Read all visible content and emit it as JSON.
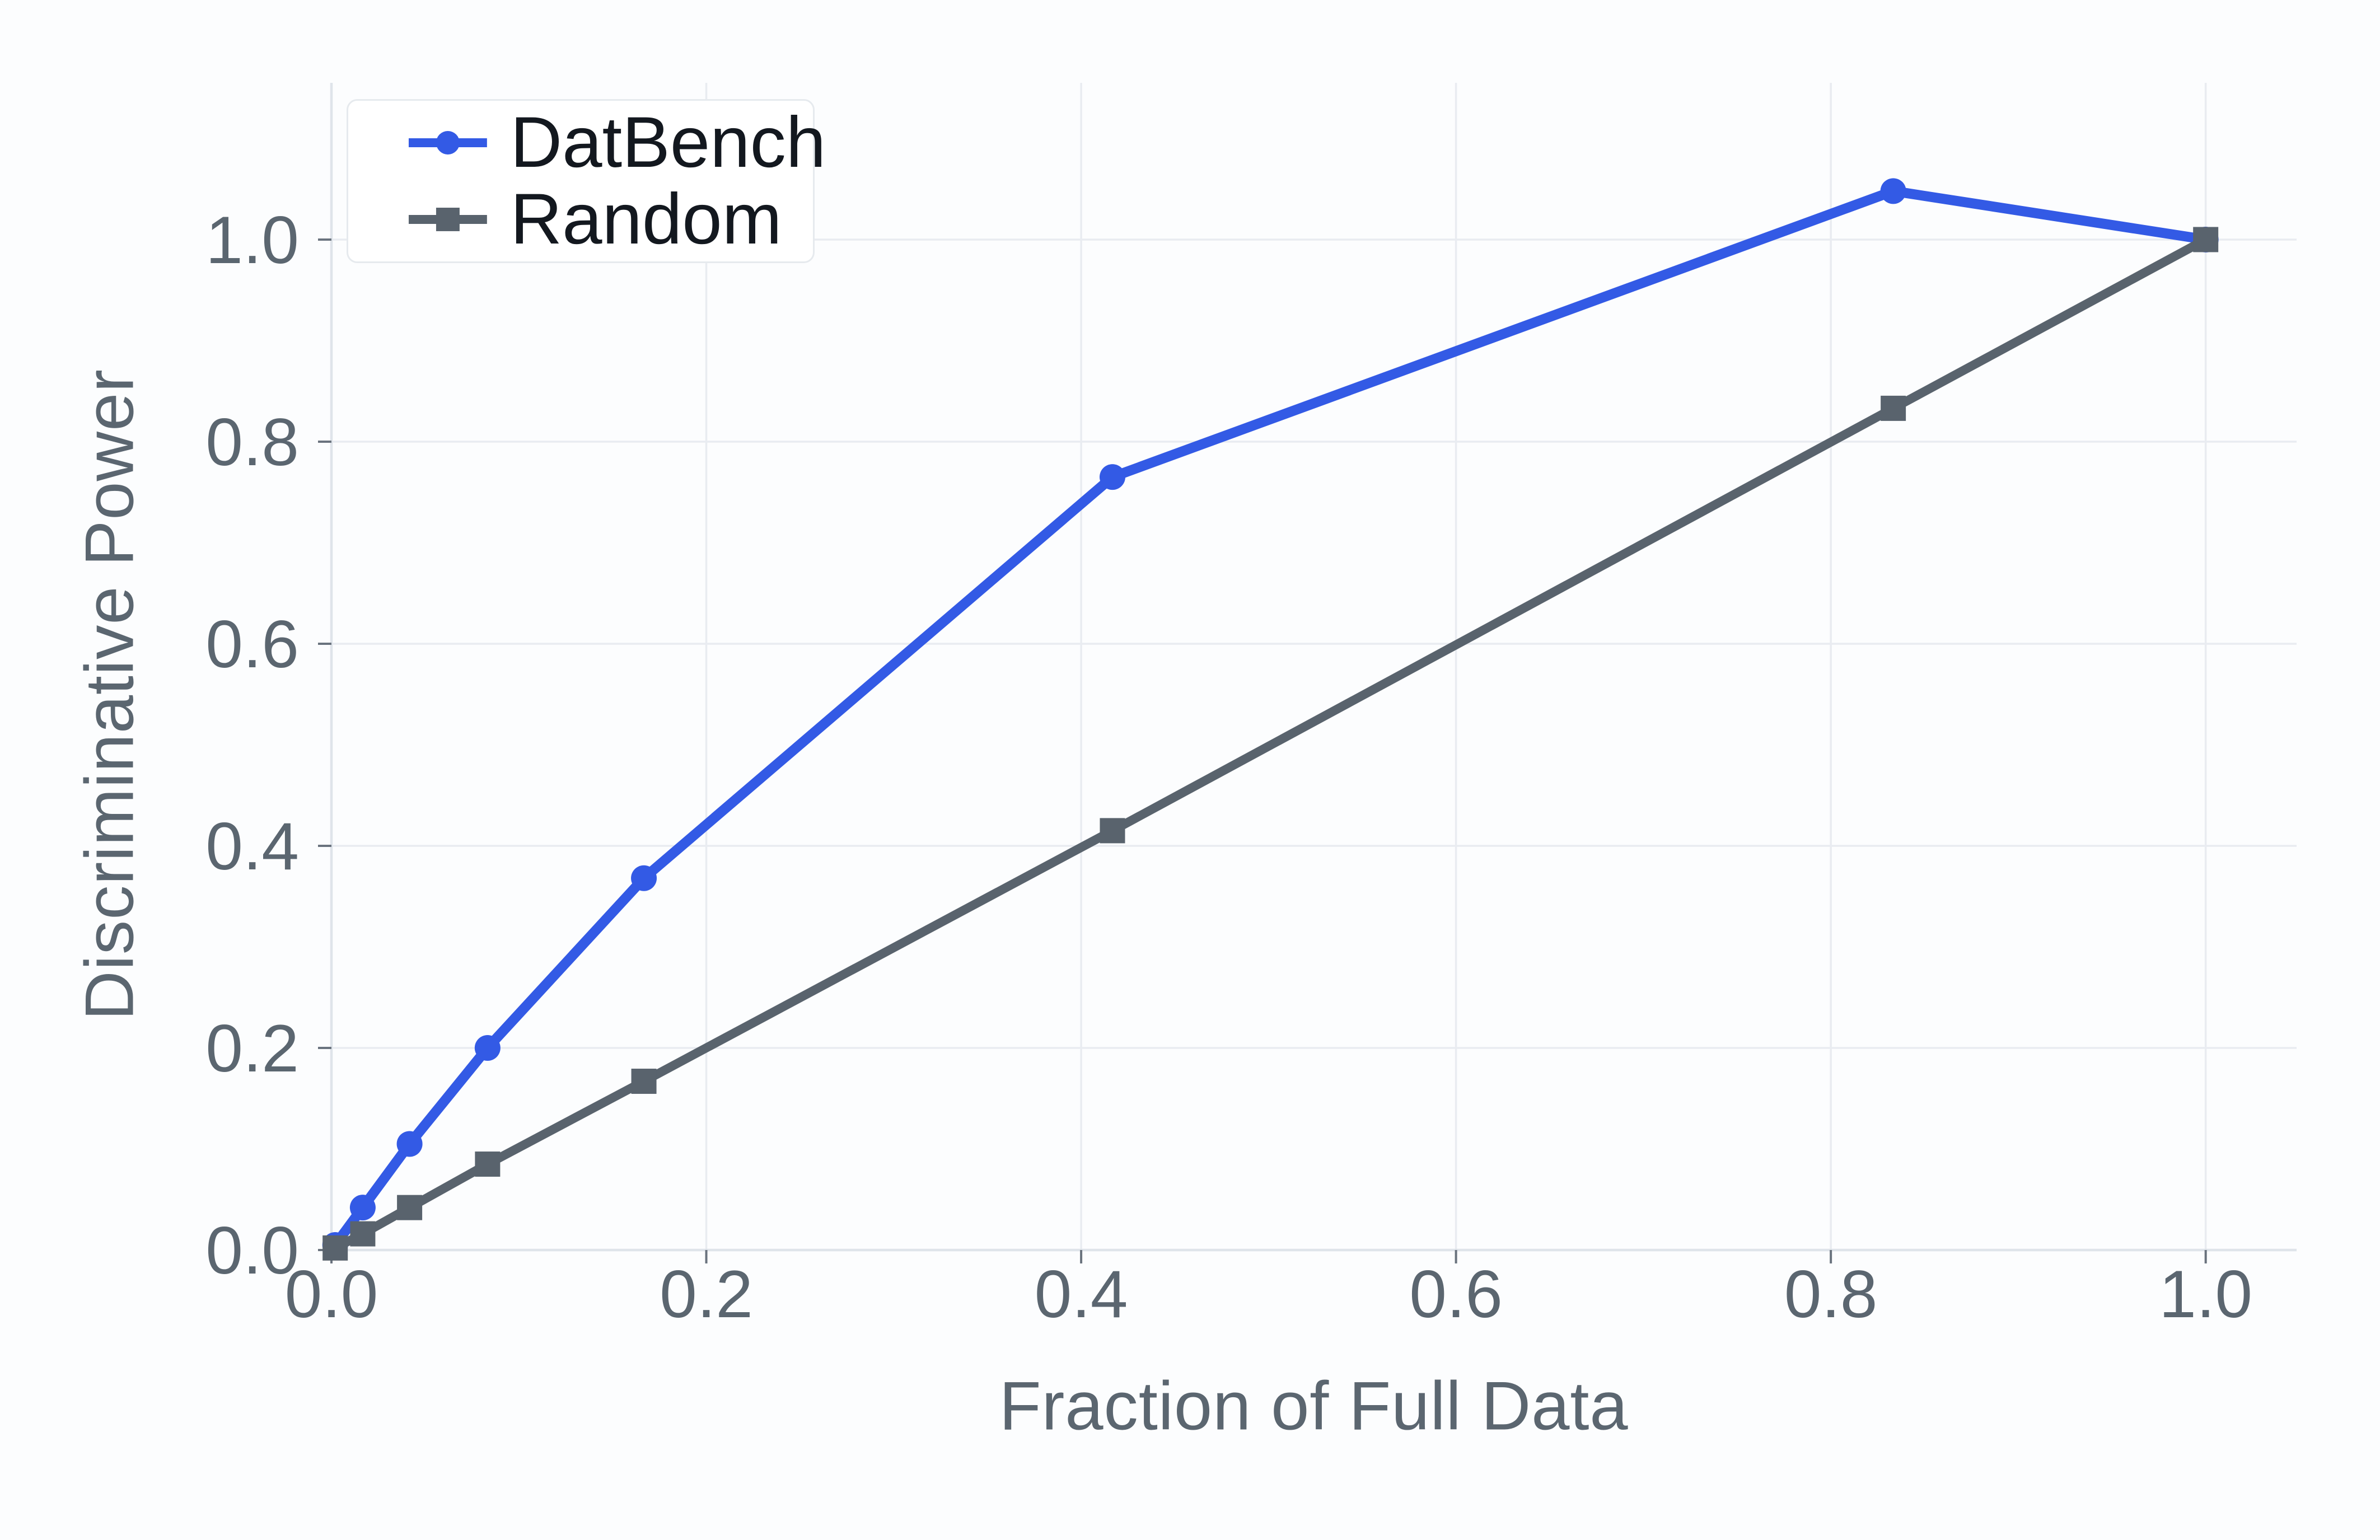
{
  "figure": {
    "background": "#fcfdfe",
    "plot_background": "#fcfdfe"
  },
  "chart_data": {
    "type": "line",
    "title": "",
    "xlabel": "Fraction of Full Data",
    "ylabel": "Discriminative Power",
    "x": [
      0.002,
      0.0167,
      0.0417,
      0.0833,
      0.1667,
      0.4167,
      0.8333,
      1.0
    ],
    "series": [
      {
        "name": "DatBench",
        "color": "#335ae5",
        "marker": "circle",
        "line_width": 18,
        "values": [
          0.005,
          0.042,
          0.105,
          0.2,
          0.368,
          0.765,
          1.048,
          1.0
        ]
      },
      {
        "name": "Random",
        "color": "#59636d",
        "marker": "square",
        "line_width": 16,
        "values": [
          0.002,
          0.016,
          0.042,
          0.085,
          0.167,
          0.415,
          0.833,
          1.0
        ]
      }
    ],
    "xticks": {
      "values": [
        0.0,
        0.2,
        0.4,
        0.6,
        0.8,
        1.0
      ],
      "labels": [
        "0.0",
        "0.2",
        "0.4",
        "0.6",
        "0.8",
        "1.0"
      ]
    },
    "yticks": {
      "values": [
        0.0,
        0.2,
        0.4,
        0.6,
        0.8,
        1.0
      ],
      "labels": [
        "0.0",
        "0.2",
        "0.4",
        "0.6",
        "0.8",
        "1.0"
      ]
    },
    "xlim": [
      0,
      1.0485
    ],
    "ylim": [
      0,
      1.1551
    ],
    "grid": true,
    "legend_position": "upper-left"
  },
  "style": {
    "grid_color": "#e9ecf1",
    "spine_color": "#dfe4ea",
    "tick_color": "#6a737e",
    "tick_label_color": "#5b6670",
    "legend_text_color": "#13181f",
    "legend_border_color": "#e6eaee"
  }
}
